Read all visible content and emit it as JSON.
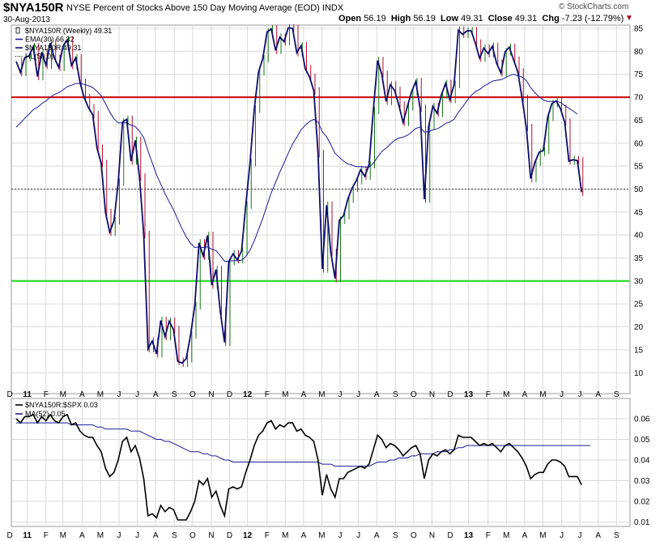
{
  "header": {
    "symbol": "$NYA150R",
    "description": "NYSE Percent of Stocks Above 150 Day Moving Average (EOD)",
    "exchange": "INDX",
    "date": "30-Aug-2013",
    "open_label": "Open",
    "open": "56.19",
    "high_label": "High",
    "high": "56.19",
    "low_label": "Low",
    "low": "49.31",
    "close_label": "Close",
    "close": "49.31",
    "chg_label": "Chg",
    "chg": "-7.23 (-12.79%)",
    "brand": "© StockCharts.com",
    "chg_arrow": "▼"
  },
  "colors": {
    "bg": "#ffffff",
    "grid": "#d9d9d9",
    "price_line": "#0d0d6b",
    "ema_line": "#1b1b9a",
    "red_line": "#cc1010",
    "green_line": "#33dd33",
    "up_bar": "#1a7a1a",
    "down_bar": "#b01030",
    "ratio_line": "#000000",
    "ma_line": "#1b1b9a"
  },
  "chart_data": [
    {
      "type": "line",
      "panel": "main",
      "legend": [
        {
          "key": "sym",
          "text": "$NYA150R (Weekly) 49.31"
        },
        {
          "key": "ema",
          "text": "EMA(30) 66.32"
        },
        {
          "key": "sym2",
          "text": "$NYA150R 49.31"
        },
        {
          "key": "hl",
          "text": "HL(50.0)"
        }
      ],
      "ylim": [
        6,
        86
      ],
      "yticks": [
        10,
        15,
        20,
        25,
        30,
        35,
        40,
        45,
        50,
        55,
        60,
        65,
        70,
        75,
        80,
        85
      ],
      "hlines": {
        "red": 70,
        "dotted": 50,
        "green": 30
      },
      "series": [
        {
          "key": "price",
          "values": [
            77.8,
            75.4,
            78.6,
            79,
            81,
            74.5,
            79.8,
            77,
            81.8,
            78.5,
            76.5,
            81.1,
            82.5,
            76.9,
            78.6,
            73.2,
            69.9,
            67.7,
            66.2,
            58.9,
            55.6,
            44.9,
            40.6,
            43.1,
            51.5,
            64.6,
            65.2,
            56.1,
            60.6,
            52.6,
            40.1,
            15.2,
            16.9,
            14.1,
            21.4,
            17.9,
            21.2,
            19.4,
            12.5,
            12.1,
            13.1,
            18.2,
            24.6,
            38.3,
            35.4,
            39.9,
            29.1,
            32.5,
            23.4,
            16.6,
            34.2,
            35.9,
            34.6,
            36.5,
            46.5,
            55.8,
            67.4,
            75.5,
            78.4,
            84.2,
            84.9,
            80.2,
            83.1,
            82.1,
            85.1,
            85,
            79.7,
            81.2,
            76.2,
            74.4,
            71.4,
            57.7,
            32.6,
            46.5,
            36.2,
            30.5,
            43.2,
            44.2,
            47.8,
            50.2,
            51.8,
            54.2,
            52.8,
            55.3,
            67.1,
            78,
            75,
            69.1,
            72.7,
            71.5,
            68.3,
            64.5,
            67.9,
            71.2,
            73.4,
            67.6,
            47.8,
            63.6,
            68,
            66.5,
            70.5,
            73,
            69.5,
            72.8,
            84.6,
            83.7,
            84.4,
            84.5,
            81.8,
            78.5,
            80.7,
            79.5,
            81.1,
            77.4,
            75.3,
            79.9,
            80.9,
            78.1,
            75.5,
            69.7,
            63.4,
            52.3,
            55.8,
            58,
            58.4,
            65.6,
            68.6,
            69.2,
            67.6,
            64.6,
            56.1,
            56.4,
            56.2,
            49.3
          ]
        },
        {
          "key": "ema30",
          "values": [
            63.5,
            64.4,
            65.4,
            66.3,
            67.3,
            67.8,
            68.6,
            69.2,
            70,
            70.6,
            71,
            71.6,
            72.3,
            72.6,
            73,
            73,
            72.8,
            72.5,
            72.1,
            71.3,
            70.3,
            68.6,
            66.8,
            65.3,
            64.4,
            64.4,
            64.4,
            63.9,
            63.6,
            62.6,
            61.2,
            58.3,
            55.7,
            53.1,
            51.1,
            49,
            47.2,
            45.5,
            43.4,
            41.4,
            39.6,
            38.2,
            37.3,
            37.4,
            37.3,
            37.4,
            36.9,
            36.6,
            35.5,
            34.3,
            34.3,
            34.4,
            34.4,
            34.5,
            35.3,
            36.7,
            38.7,
            41.2,
            43.6,
            46.5,
            49.2,
            51.4,
            53.7,
            55.7,
            57.8,
            59.8,
            61.3,
            62.9,
            63.9,
            64.7,
            65.2,
            64.6,
            62.5,
            61.4,
            59.7,
            57.8,
            56.9,
            56.1,
            55.5,
            55.2,
            54.9,
            54.9,
            54.8,
            54.8,
            55.6,
            57,
            58.2,
            58.9,
            59.8,
            60.6,
            61.1,
            61.3,
            61.7,
            62.4,
            63.2,
            63.5,
            62.4,
            62.5,
            62.9,
            63.1,
            63.6,
            64.3,
            64.6,
            65.2,
            66.7,
            67.9,
            69.2,
            70.4,
            71.2,
            71.7,
            72.4,
            72.9,
            73.5,
            73.7,
            73.8,
            74.2,
            74.7,
            75,
            74.7,
            74.4,
            73.6,
            72.1,
            71,
            70.1,
            69.4,
            69.1,
            69.1,
            69.1,
            68.9,
            68.2,
            67.6,
            67,
            66.3
          ]
        }
      ]
    },
    {
      "type": "line",
      "panel": "ratio",
      "legend": [
        {
          "key": "ratio",
          "text": "$NYA150R:$SPX 0.03"
        },
        {
          "key": "ma",
          "text": "MA(52) 0.05"
        }
      ],
      "ylim": [
        0.008,
        0.068
      ],
      "yticks": [
        0.01,
        0.02,
        0.03,
        0.04,
        0.05,
        0.06
      ],
      "ytick_labels": [
        "0.01",
        "0.02",
        "0.03",
        "0.04",
        "0.05",
        "0.06"
      ],
      "series": [
        {
          "key": "ratio",
          "values": [
            0.06,
            0.058,
            0.061,
            0.061,
            0.062,
            0.058,
            0.061,
            0.059,
            0.062,
            0.059,
            0.058,
            0.061,
            0.062,
            0.057,
            0.058,
            0.054,
            0.052,
            0.051,
            0.051,
            0.047,
            0.044,
            0.036,
            0.032,
            0.034,
            0.04,
            0.049,
            0.051,
            0.044,
            0.047,
            0.041,
            0.031,
            0.013,
            0.014,
            0.012,
            0.018,
            0.015,
            0.017,
            0.016,
            0.011,
            0.011,
            0.011,
            0.015,
            0.02,
            0.03,
            0.028,
            0.031,
            0.022,
            0.025,
            0.018,
            0.013,
            0.026,
            0.027,
            0.026,
            0.027,
            0.034,
            0.04,
            0.047,
            0.052,
            0.054,
            0.058,
            0.059,
            0.055,
            0.057,
            0.056,
            0.058,
            0.058,
            0.054,
            0.055,
            0.052,
            0.051,
            0.049,
            0.04,
            0.023,
            0.033,
            0.026,
            0.022,
            0.031,
            0.031,
            0.034,
            0.035,
            0.036,
            0.037,
            0.036,
            0.038,
            0.045,
            0.052,
            0.05,
            0.046,
            0.048,
            0.047,
            0.045,
            0.042,
            0.044,
            0.046,
            0.047,
            0.043,
            0.031,
            0.04,
            0.043,
            0.042,
            0.044,
            0.045,
            0.043,
            0.045,
            0.052,
            0.051,
            0.051,
            0.051,
            0.049,
            0.047,
            0.048,
            0.047,
            0.048,
            0.046,
            0.044,
            0.047,
            0.048,
            0.046,
            0.044,
            0.041,
            0.037,
            0.031,
            0.033,
            0.034,
            0.034,
            0.038,
            0.04,
            0.04,
            0.039,
            0.037,
            0.032,
            0.032,
            0.032,
            0.028
          ]
        },
        {
          "key": "ma52",
          "values": [
            0.058,
            0.058,
            0.058,
            0.058,
            0.058,
            0.058,
            0.058,
            0.058,
            0.058,
            0.058,
            0.058,
            0.058,
            0.058,
            0.057,
            0.057,
            0.057,
            0.057,
            0.057,
            0.057,
            0.056,
            0.056,
            0.055,
            0.055,
            0.055,
            0.055,
            0.055,
            0.055,
            0.054,
            0.054,
            0.054,
            0.053,
            0.052,
            0.051,
            0.05,
            0.05,
            0.049,
            0.049,
            0.048,
            0.047,
            0.046,
            0.045,
            0.044,
            0.044,
            0.044,
            0.043,
            0.043,
            0.042,
            0.042,
            0.041,
            0.04,
            0.04,
            0.039,
            0.039,
            0.039,
            0.039,
            0.039,
            0.039,
            0.039,
            0.039,
            0.039,
            0.039,
            0.039,
            0.039,
            0.039,
            0.039,
            0.039,
            0.039,
            0.039,
            0.039,
            0.039,
            0.039,
            0.039,
            0.038,
            0.038,
            0.038,
            0.037,
            0.037,
            0.037,
            0.037,
            0.037,
            0.037,
            0.037,
            0.037,
            0.037,
            0.038,
            0.039,
            0.039,
            0.039,
            0.04,
            0.04,
            0.041,
            0.041,
            0.041,
            0.042,
            0.042,
            0.043,
            0.043,
            0.043,
            0.043,
            0.044,
            0.044,
            0.044,
            0.045,
            0.045,
            0.046,
            0.046,
            0.047,
            0.047,
            0.047,
            0.047,
            0.047,
            0.047,
            0.047,
            0.047,
            0.047,
            0.047,
            0.047,
            0.047,
            0.047,
            0.047,
            0.047,
            0.047,
            0.047,
            0.047,
            0.047,
            0.047,
            0.047,
            0.047,
            0.047,
            0.047,
            0.047,
            0.047,
            0.047,
            0.047,
            0.047,
            0.047
          ]
        }
      ]
    }
  ],
  "x_axis": {
    "months": [
      {
        "label": "D",
        "week": -1.5
      },
      {
        "label": "11",
        "week": 2.6,
        "year": true
      },
      {
        "label": "F",
        "week": 7
      },
      {
        "label": "M",
        "week": 11
      },
      {
        "label": "A",
        "week": 15.5
      },
      {
        "label": "M",
        "week": 19.8
      },
      {
        "label": "J",
        "week": 24.2
      },
      {
        "label": "J",
        "week": 28.5
      },
      {
        "label": "A",
        "week": 32.8
      },
      {
        "label": "S",
        "week": 37.2
      },
      {
        "label": "O",
        "week": 41.5
      },
      {
        "label": "N",
        "week": 45.9
      },
      {
        "label": "D",
        "week": 50.2
      },
      {
        "label": "12",
        "week": 54.4,
        "year": true
      },
      {
        "label": "F",
        "week": 59
      },
      {
        "label": "M",
        "week": 63.3
      },
      {
        "label": "A",
        "week": 67.6
      },
      {
        "label": "M",
        "week": 71.9
      },
      {
        "label": "J",
        "week": 76.2
      },
      {
        "label": "J",
        "week": 80.5
      },
      {
        "label": "A",
        "week": 84.8
      },
      {
        "label": "S",
        "week": 89.2
      },
      {
        "label": "O",
        "week": 93.5
      },
      {
        "label": "N",
        "week": 97.8
      },
      {
        "label": "D",
        "week": 102.1
      },
      {
        "label": "13",
        "week": 106.4,
        "year": true
      },
      {
        "label": "F",
        "week": 111
      },
      {
        "label": "M",
        "week": 115.3
      },
      {
        "label": "A",
        "week": 119.6
      },
      {
        "label": "M",
        "week": 123.9
      },
      {
        "label": "J",
        "week": 128.3
      },
      {
        "label": "J",
        "week": 132.6
      },
      {
        "label": "A",
        "week": 136.9
      },
      {
        "label": "S",
        "week": 141.2
      }
    ]
  }
}
